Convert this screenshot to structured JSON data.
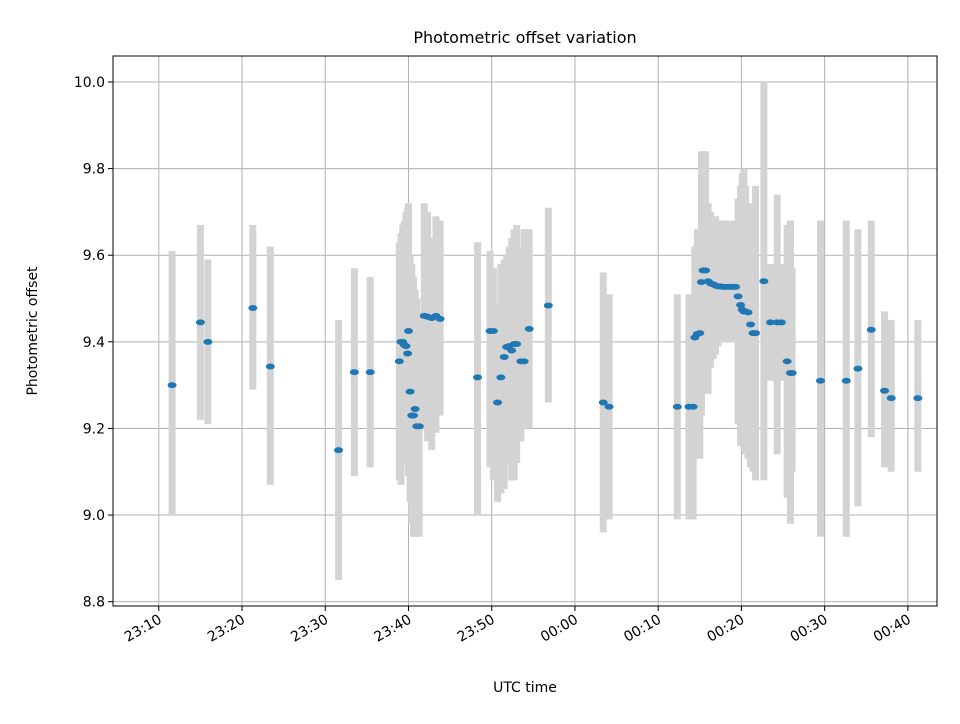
{
  "chart_data": {
    "type": "scatter",
    "title": "Photometric offset variation",
    "xlabel": "UTC time",
    "ylabel": "Photometric offset",
    "x_unit": "minutes after 23:00 UTC",
    "xlim": [
      4.5,
      103.5
    ],
    "ylim": [
      8.79,
      10.06
    ],
    "grid": true,
    "colors": {
      "marker": "#1f77b4",
      "errorbar": "#d3d3d3",
      "grid": "#b0b0b0"
    },
    "x_ticks": [
      {
        "label": "23:10"
      },
      {
        "label": "23:20"
      },
      {
        "label": "23:30"
      },
      {
        "label": "23:40"
      },
      {
        "label": "23:50"
      },
      {
        "label": "00:00"
      },
      {
        "label": "00:10"
      },
      {
        "label": "00:20"
      },
      {
        "label": "00:30"
      },
      {
        "label": "00:40"
      }
    ],
    "y_ticks": [
      "8.8",
      "9.0",
      "9.2",
      "9.4",
      "9.6",
      "9.8",
      "10.0"
    ],
    "series": [
      {
        "points": [
          [
            11.6,
            9.3,
            9.0,
            9.61
          ],
          [
            15.0,
            9.445,
            9.22,
            9.67
          ],
          [
            15.9,
            9.4,
            9.21,
            9.59
          ],
          [
            21.3,
            9.478,
            9.29,
            9.67
          ],
          [
            23.4,
            9.343,
            9.07,
            9.62
          ],
          [
            31.6,
            9.15,
            8.85,
            9.45
          ],
          [
            33.5,
            9.33,
            9.09,
            9.57
          ],
          [
            35.4,
            9.33,
            9.11,
            9.55
          ],
          [
            38.9,
            9.355,
            9.08,
            9.63
          ],
          [
            39.1,
            9.4,
            9.07,
            9.65
          ],
          [
            39.3,
            9.4,
            9.12,
            9.67
          ],
          [
            39.5,
            9.393,
            9.16,
            9.68
          ],
          [
            39.7,
            9.39,
            9.19,
            9.7
          ],
          [
            39.9,
            9.373,
            9.14,
            9.71
          ],
          [
            40.0,
            9.425,
            9.09,
            9.72
          ],
          [
            40.2,
            9.285,
            9.03,
            9.6
          ],
          [
            40.4,
            9.23,
            8.98,
            9.58
          ],
          [
            40.6,
            9.23,
            8.95,
            9.55
          ],
          [
            40.8,
            9.245,
            8.95,
            9.52
          ],
          [
            41.0,
            9.205,
            8.95,
            9.5
          ],
          [
            41.3,
            9.205,
            8.95,
            9.47
          ],
          [
            41.9,
            9.46,
            9.2,
            9.72
          ],
          [
            42.3,
            9.458,
            9.17,
            9.7
          ],
          [
            42.8,
            9.455,
            9.15,
            9.64
          ],
          [
            43.3,
            9.46,
            9.19,
            9.69
          ],
          [
            43.8,
            9.453,
            9.23,
            9.68
          ],
          [
            48.3,
            9.318,
            9.0,
            9.63
          ],
          [
            49.8,
            9.425,
            9.11,
            9.61
          ],
          [
            50.2,
            9.425,
            9.08,
            9.57
          ],
          [
            50.7,
            9.26,
            9.03,
            9.49
          ],
          [
            51.1,
            9.318,
            9.05,
            9.58
          ],
          [
            51.5,
            9.365,
            9.06,
            9.59
          ],
          [
            51.8,
            9.388,
            9.12,
            9.6
          ],
          [
            52.1,
            9.39,
            9.14,
            9.62
          ],
          [
            52.4,
            9.38,
            9.08,
            9.64
          ],
          [
            52.7,
            9.395,
            9.08,
            9.66
          ],
          [
            53.0,
            9.395,
            9.12,
            9.67
          ],
          [
            53.5,
            9.355,
            9.17,
            9.62
          ],
          [
            53.9,
            9.355,
            9.2,
            9.66
          ],
          [
            54.5,
            9.43,
            9.2,
            9.66
          ],
          [
            56.8,
            9.484,
            9.26,
            9.71
          ],
          [
            63.4,
            9.26,
            8.96,
            9.56
          ],
          [
            64.1,
            9.25,
            8.99,
            9.51
          ],
          [
            72.3,
            9.25,
            8.99,
            9.51
          ],
          [
            73.7,
            9.25,
            8.99,
            9.51
          ],
          [
            74.2,
            9.25,
            8.99,
            9.51
          ],
          [
            74.4,
            9.41,
            9.14,
            9.62
          ],
          [
            74.7,
            9.418,
            9.14,
            9.66
          ],
          [
            75.0,
            9.42,
            9.13,
            9.63
          ],
          [
            75.2,
            9.538,
            9.23,
            9.84
          ],
          [
            75.4,
            9.565,
            9.31,
            9.82
          ],
          [
            75.7,
            9.565,
            9.28,
            9.84
          ],
          [
            76.0,
            9.54,
            9.28,
            9.72
          ],
          [
            76.3,
            9.535,
            9.34,
            9.7
          ],
          [
            76.6,
            9.533,
            9.36,
            9.68
          ],
          [
            76.9,
            9.53,
            9.37,
            9.69
          ],
          [
            77.2,
            9.528,
            9.39,
            9.68
          ],
          [
            77.5,
            9.528,
            9.4,
            9.68
          ],
          [
            77.8,
            9.527,
            9.4,
            9.68
          ],
          [
            78.1,
            9.527,
            9.4,
            9.68
          ],
          [
            78.4,
            9.527,
            9.4,
            9.68
          ],
          [
            78.7,
            9.527,
            9.4,
            9.68
          ],
          [
            79.0,
            9.527,
            9.4,
            9.68
          ],
          [
            79.3,
            9.527,
            9.4,
            9.68
          ],
          [
            79.6,
            9.505,
            9.21,
            9.73
          ],
          [
            79.9,
            9.485,
            9.16,
            9.76
          ],
          [
            80.1,
            9.474,
            9.17,
            9.79
          ],
          [
            80.3,
            9.47,
            9.15,
            9.8
          ],
          [
            80.5,
            9.47,
            9.14,
            9.76
          ],
          [
            80.8,
            9.468,
            9.13,
            9.7
          ],
          [
            81.1,
            9.44,
            9.11,
            9.72
          ],
          [
            81.4,
            9.42,
            9.1,
            9.72
          ],
          [
            81.7,
            9.42,
            9.08,
            9.76
          ],
          [
            82.7,
            9.54,
            9.08,
            10.0
          ],
          [
            83.5,
            9.445,
            9.31,
            9.58
          ],
          [
            84.3,
            9.445,
            9.14,
            9.74
          ],
          [
            84.8,
            9.445,
            9.31,
            9.58
          ],
          [
            85.5,
            9.355,
            9.04,
            9.67
          ],
          [
            85.9,
            9.328,
            8.98,
            9.68
          ],
          [
            86.1,
            9.328,
            9.1,
            9.57
          ],
          [
            89.5,
            9.31,
            8.95,
            9.68
          ],
          [
            92.6,
            9.31,
            8.95,
            9.68
          ],
          [
            94.0,
            9.338,
            9.02,
            9.66
          ],
          [
            95.6,
            9.428,
            9.18,
            9.68
          ],
          [
            97.2,
            9.287,
            9.11,
            9.47
          ],
          [
            98.0,
            9.27,
            9.1,
            9.45
          ],
          [
            101.2,
            9.27,
            9.1,
            9.45
          ]
        ]
      }
    ]
  }
}
